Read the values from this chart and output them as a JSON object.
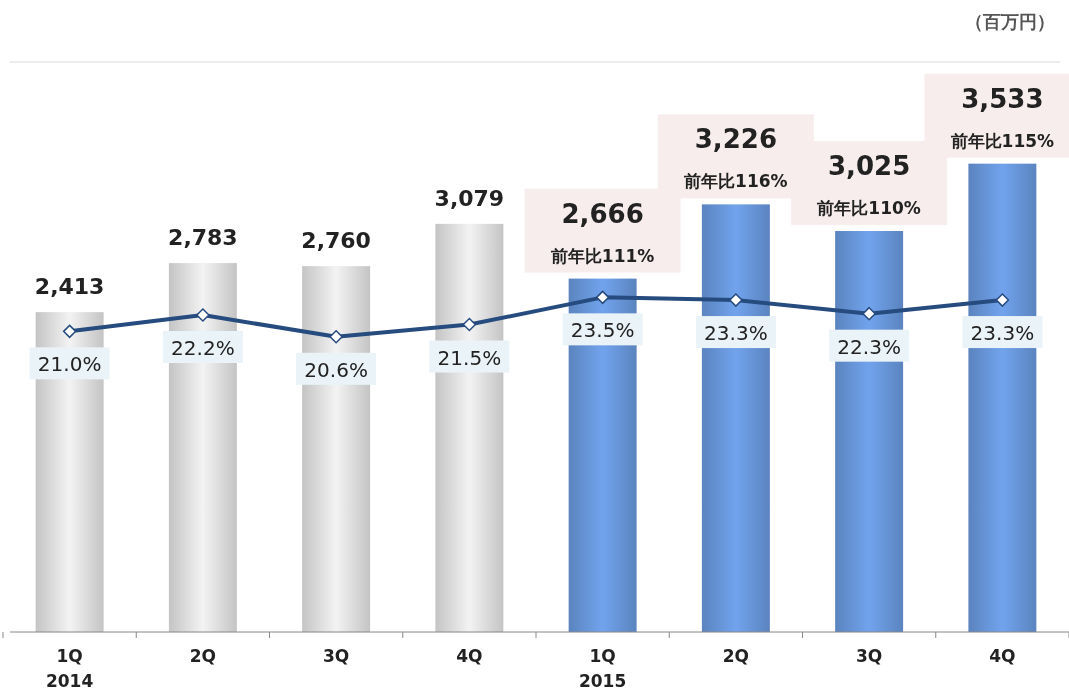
{
  "chart_data": {
    "type": "bar",
    "categories": [
      "1Q\n2014",
      "2Q",
      "3Q",
      "4Q",
      "1Q\n2015",
      "2Q",
      "3Q",
      "4Q"
    ],
    "series": [
      {
        "colors": [
          "#c4c4c4",
          "#c4c4c4",
          "#c4c4c4",
          "#c4c4c4",
          "#5b84bf",
          "#5b84bf",
          "#5b84bf",
          "#5b84bf"
        ],
        "values": [
          2413,
          2783,
          2760,
          3079,
          2666,
          3226,
          3025,
          3533
        ],
        "value_labels": [
          "2,413",
          "2,783",
          "2,760",
          "3,079",
          "2,666",
          "3,226",
          "3,025",
          "3,533"
        ]
      },
      {
        "type": "line",
        "axis": "y2",
        "color": "#264b7e",
        "marker": "diamond",
        "values": [
          21.0,
          22.2,
          20.6,
          21.5,
          23.5,
          23.3,
          22.3,
          23.3
        ],
        "value_labels": [
          "21.0%",
          "22.2%",
          "20.6%",
          "21.5%",
          "23.5%",
          "23.3%",
          "22.3%",
          "23.3%"
        ]
      }
    ],
    "ylim": [
      0,
      4300
    ],
    "y2lim": [
      -1.1,
      40.8
    ],
    "tick_labels": "x",
    "annotations": [
      "（百万円）",
      "前年比111%",
      "前年比116%",
      "前年比110%",
      "前年比115%"
    ]
  }
}
